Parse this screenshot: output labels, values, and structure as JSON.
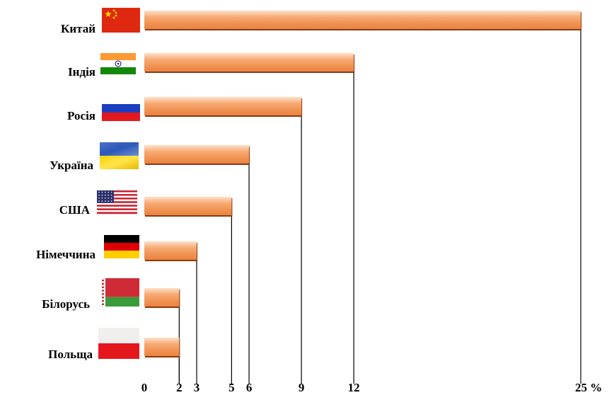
{
  "chart_data": {
    "type": "bar",
    "orientation": "horizontal",
    "categories": [
      "Китай",
      "Індія",
      "Росія",
      "Україна",
      "США",
      "Німеччина",
      "Білорусь",
      "Польща"
    ],
    "values": [
      25,
      12,
      9,
      6,
      5,
      3,
      2,
      2
    ],
    "flags": [
      "china-flag",
      "india-flag",
      "russia-flag",
      "ukraine-flag",
      "usa-flag",
      "germany-flag",
      "belarus-flag",
      "poland-flag"
    ],
    "tick_labels": [
      "0",
      "2",
      "3",
      "5",
      "6",
      "9",
      "12",
      "25 %"
    ],
    "tick_values": [
      0,
      2,
      3,
      5,
      6,
      9,
      12,
      25
    ],
    "xlim": [
      0,
      25
    ],
    "grid": false,
    "legend": "none",
    "bar_color": "#f4a46a",
    "bar_edge_color": "#8a3a10"
  }
}
